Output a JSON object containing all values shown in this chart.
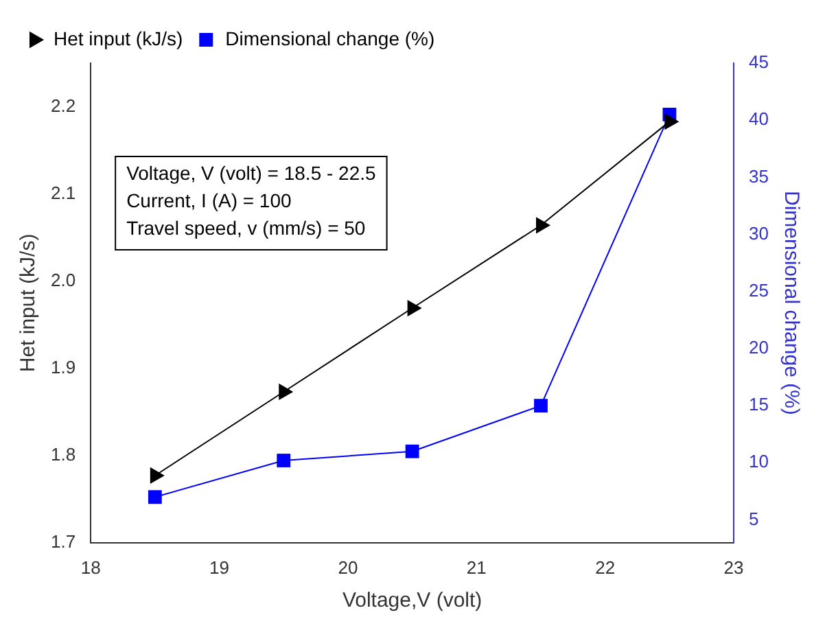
{
  "chart_data": {
    "type": "line",
    "xlabel": "Voltage,V (volt)",
    "ylabel": "Het input (kJ/s)",
    "y2label": "Dimensional change (%)",
    "x": [
      18.5,
      19.5,
      20.5,
      21.5,
      22.5
    ],
    "series": [
      {
        "name": "Het input (kJ/s)",
        "color": "#000000",
        "marker": "triangle",
        "values": [
          1.777,
          1.873,
          1.969,
          2.064,
          2.183
        ]
      },
      {
        "name": "Dimensional change (%)",
        "color": "#0000ff",
        "marker": "square",
        "axis": "y2",
        "values": [
          7,
          10.2,
          11,
          15,
          40.5
        ]
      }
    ],
    "xlim": [
      18,
      23
    ],
    "xticks": [
      18,
      19,
      20,
      21,
      22,
      23
    ],
    "ylim": [
      1.7,
      2.25
    ],
    "yticks": [
      1.7,
      1.8,
      1.9,
      {
        "value": 2,
        "label": "2.0"
      },
      2.1,
      2.2
    ],
    "y2lim": [
      3,
      45
    ],
    "y2ticks": [
      5,
      10,
      15,
      20,
      25,
      30,
      35,
      40,
      45
    ],
    "annotations": [
      "Voltage, V (volt) = 18.5 - 22.5\nCurrent, I (A) = 100\nTravel speed, v (mm/s) = 50"
    ],
    "legend": "top left",
    "grid": false
  }
}
